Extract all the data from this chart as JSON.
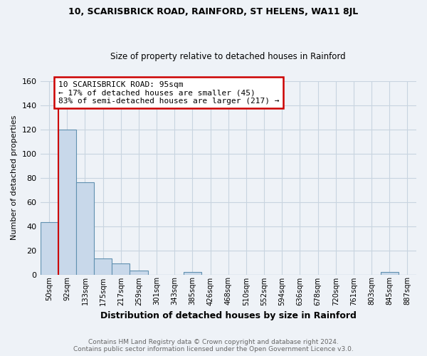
{
  "title": "10, SCARISBRICK ROAD, RAINFORD, ST HELENS, WA11 8JL",
  "subtitle": "Size of property relative to detached houses in Rainford",
  "xlabel": "Distribution of detached houses by size in Rainford",
  "ylabel": "Number of detached properties",
  "footer_line1": "Contains HM Land Registry data © Crown copyright and database right 2024.",
  "footer_line2": "Contains public sector information licensed under the Open Government Licence v3.0.",
  "bin_labels": [
    "50sqm",
    "92sqm",
    "133sqm",
    "175sqm",
    "217sqm",
    "259sqm",
    "301sqm",
    "343sqm",
    "385sqm",
    "426sqm",
    "468sqm",
    "510sqm",
    "552sqm",
    "594sqm",
    "636sqm",
    "678sqm",
    "720sqm",
    "761sqm",
    "803sqm",
    "845sqm",
    "887sqm"
  ],
  "bar_values": [
    43,
    120,
    76,
    13,
    9,
    3,
    0,
    0,
    2,
    0,
    0,
    0,
    0,
    0,
    0,
    0,
    0,
    0,
    0,
    2,
    0
  ],
  "bar_color": "#c8d8ea",
  "bar_edge_color": "#6090b0",
  "property_line_label": "10 SCARISBRICK ROAD: 95sqm",
  "annotation_line2": "← 17% of detached houses are smaller (45)",
  "annotation_line3": "83% of semi-detached houses are larger (217) →",
  "annotation_box_color": "white",
  "annotation_box_edge_color": "#cc0000",
  "vline_color": "#cc0000",
  "ylim": [
    0,
    160
  ],
  "yticks": [
    0,
    20,
    40,
    60,
    80,
    100,
    120,
    140,
    160
  ],
  "grid_color": "#c8d4e0",
  "background_color": "#eef2f7"
}
